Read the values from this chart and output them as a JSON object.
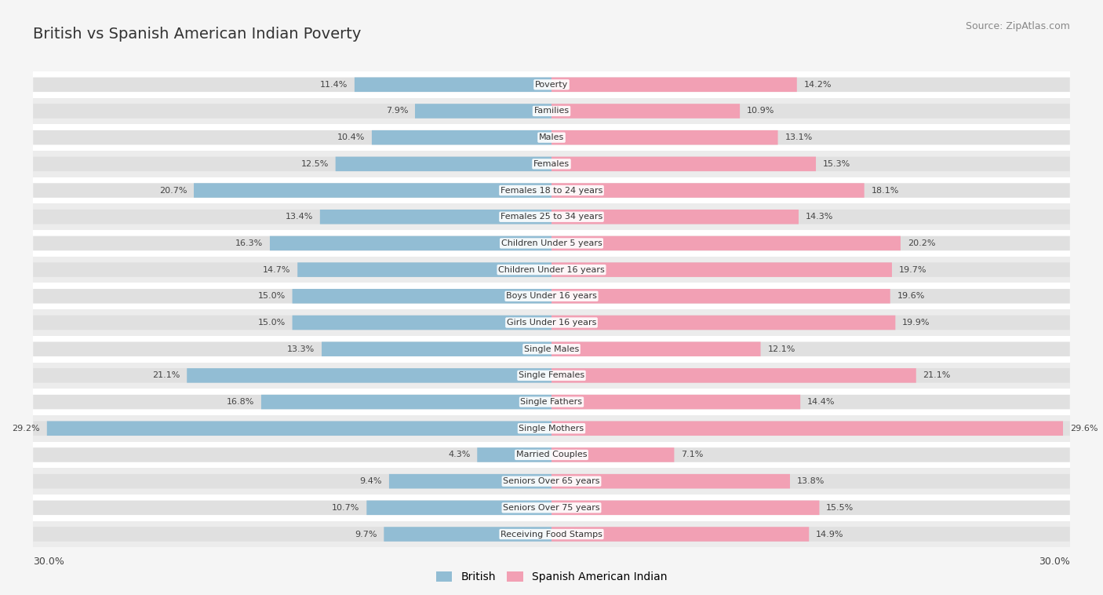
{
  "title": "British vs Spanish American Indian Poverty",
  "source": "Source: ZipAtlas.com",
  "categories": [
    "Poverty",
    "Families",
    "Males",
    "Females",
    "Females 18 to 24 years",
    "Females 25 to 34 years",
    "Children Under 5 years",
    "Children Under 16 years",
    "Boys Under 16 years",
    "Girls Under 16 years",
    "Single Males",
    "Single Females",
    "Single Fathers",
    "Single Mothers",
    "Married Couples",
    "Seniors Over 65 years",
    "Seniors Over 75 years",
    "Receiving Food Stamps"
  ],
  "british": [
    11.4,
    7.9,
    10.4,
    12.5,
    20.7,
    13.4,
    16.3,
    14.7,
    15.0,
    15.0,
    13.3,
    21.1,
    16.8,
    29.2,
    4.3,
    9.4,
    10.7,
    9.7
  ],
  "spanish": [
    14.2,
    10.9,
    13.1,
    15.3,
    18.1,
    14.3,
    20.2,
    19.7,
    19.6,
    19.9,
    12.1,
    21.1,
    14.4,
    29.6,
    7.1,
    13.8,
    15.5,
    14.9
  ],
  "british_color": "#92BDD4",
  "spanish_color": "#F2A0B4",
  "background_color": "#f5f5f5",
  "row_color_light": "#ffffff",
  "row_color_dark": "#ececec",
  "x_max": 30.0,
  "axis_label_left": "30.0%",
  "axis_label_right": "30.0%",
  "legend_british": "British",
  "legend_spanish": "Spanish American Indian",
  "title_fontsize": 14,
  "source_fontsize": 9,
  "label_fontsize": 8,
  "value_fontsize": 8
}
